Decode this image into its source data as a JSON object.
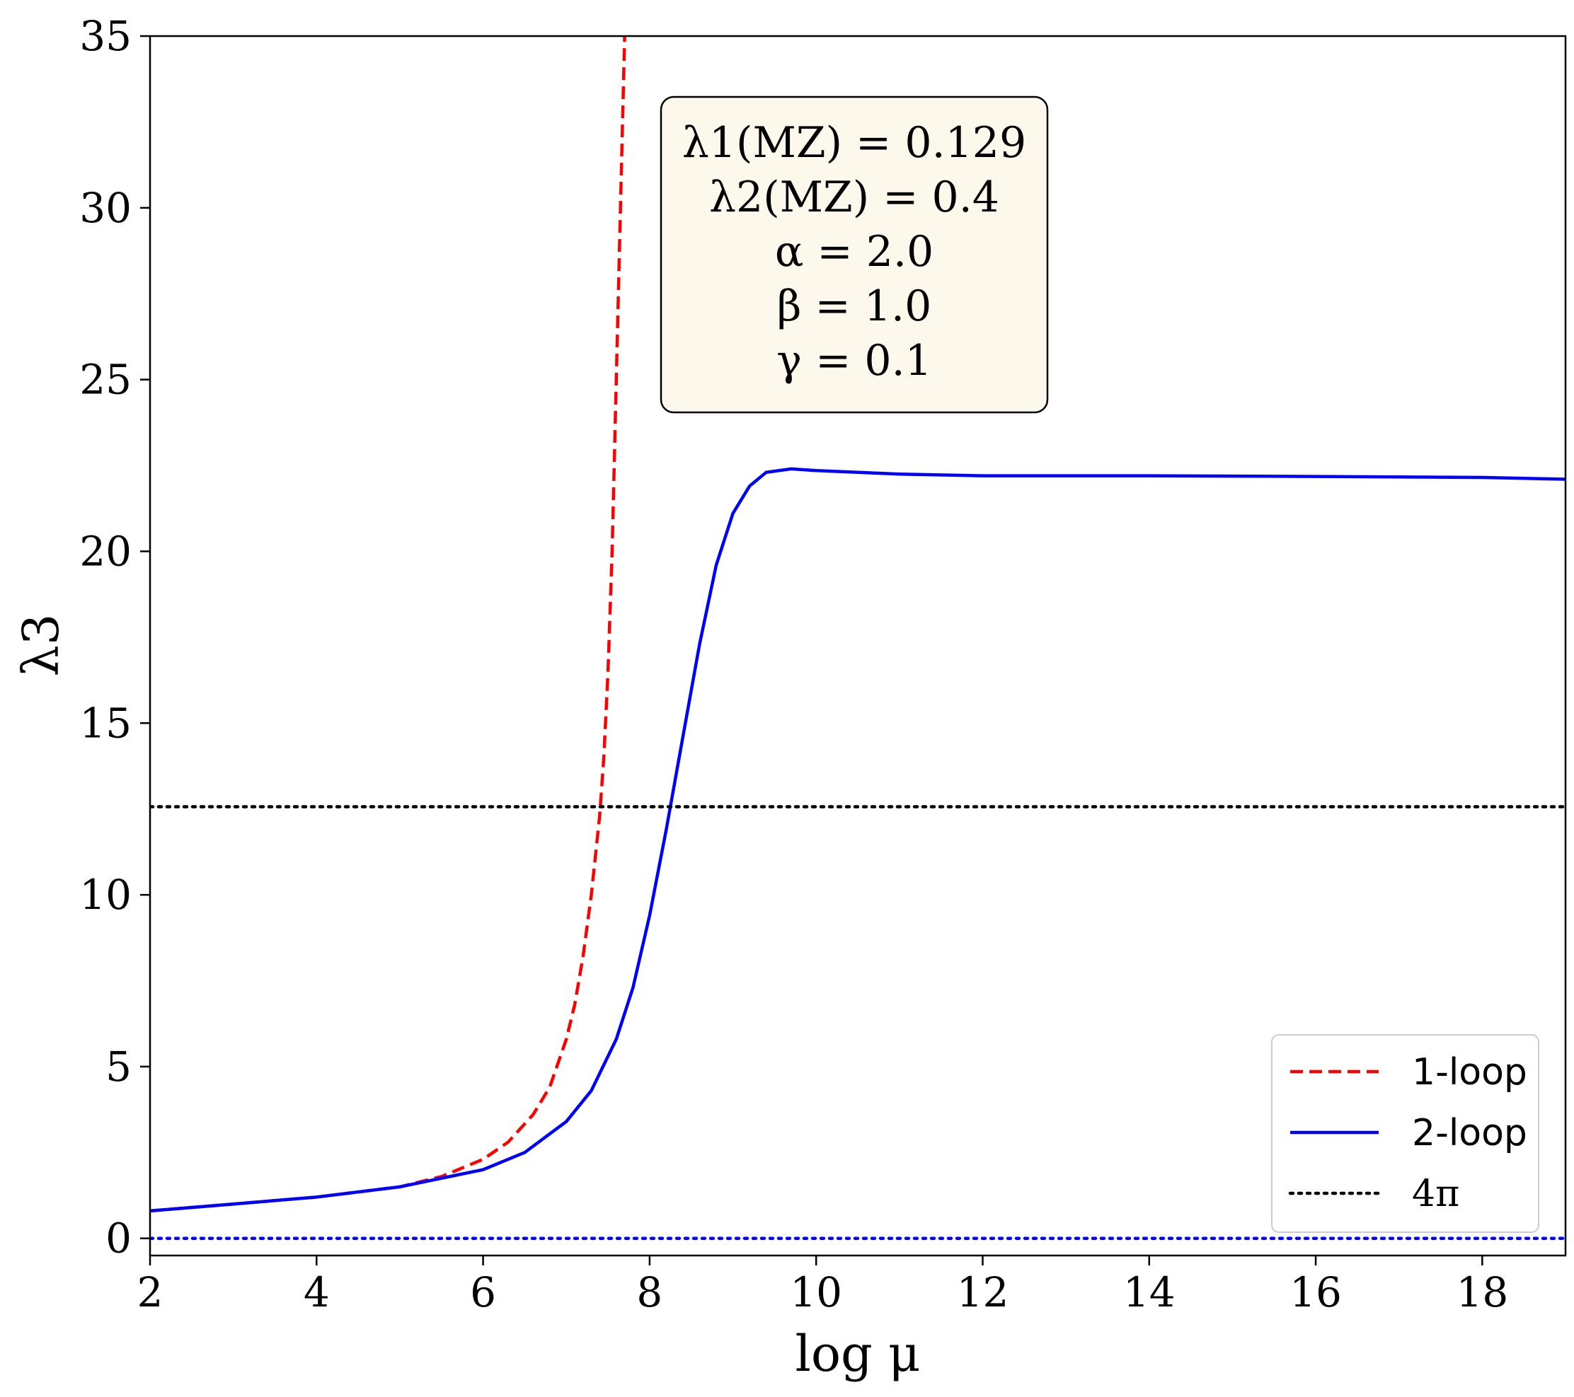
{
  "chart_data": {
    "type": "line",
    "title": "",
    "xlabel": "log μ",
    "ylabel": "λ3",
    "xlim": [
      2,
      19
    ],
    "ylim": [
      -0.5,
      35
    ],
    "xticks": [
      2,
      4,
      6,
      8,
      10,
      12,
      14,
      16,
      18
    ],
    "yticks": [
      0,
      5,
      10,
      15,
      20,
      25,
      30,
      35
    ],
    "grid": false,
    "legend_position": "bottom-right",
    "annotation": {
      "lines": [
        "λ1(MZ) = 0.129",
        "λ2(MZ) = 0.4",
        "α = 2.0",
        "β = 1.0",
        "γ = 0.1"
      ]
    },
    "series": [
      {
        "name": "1-loop",
        "color": "#ff0000",
        "style": "dashed",
        "x": [
          2.0,
          2.5,
          3.0,
          3.5,
          4.0,
          4.5,
          5.0,
          5.5,
          6.0,
          6.3,
          6.6,
          6.8,
          7.0,
          7.1,
          7.2,
          7.3,
          7.4,
          7.45,
          7.5,
          7.55,
          7.6,
          7.65,
          7.7
        ],
        "y": [
          0.8,
          0.9,
          1.0,
          1.1,
          1.2,
          1.35,
          1.5,
          1.8,
          2.3,
          2.8,
          3.6,
          4.4,
          5.8,
          6.8,
          8.2,
          10.0,
          12.3,
          14.0,
          16.5,
          20.0,
          25.0,
          30.0,
          35.0
        ]
      },
      {
        "name": "2-loop",
        "color": "#0000ff",
        "style": "solid",
        "x": [
          2.0,
          3.0,
          4.0,
          5.0,
          6.0,
          6.5,
          7.0,
          7.3,
          7.6,
          7.8,
          8.0,
          8.2,
          8.4,
          8.6,
          8.8,
          9.0,
          9.2,
          9.4,
          9.7,
          10.0,
          11.0,
          12.0,
          14.0,
          16.0,
          18.0,
          19.0
        ],
        "y": [
          0.8,
          1.0,
          1.2,
          1.5,
          2.0,
          2.5,
          3.4,
          4.3,
          5.8,
          7.3,
          9.4,
          11.9,
          14.6,
          17.3,
          19.6,
          21.1,
          21.9,
          22.3,
          22.4,
          22.35,
          22.25,
          22.2,
          22.2,
          22.18,
          22.15,
          22.1
        ]
      },
      {
        "name": "4π",
        "color": "#000000",
        "style": "dotted",
        "x": [
          2,
          19
        ],
        "y": [
          12.566,
          12.566
        ]
      },
      {
        "name": "",
        "color": "#0000ff",
        "style": "dotted",
        "x": [
          2,
          19
        ],
        "y": [
          0,
          0
        ]
      }
    ]
  }
}
